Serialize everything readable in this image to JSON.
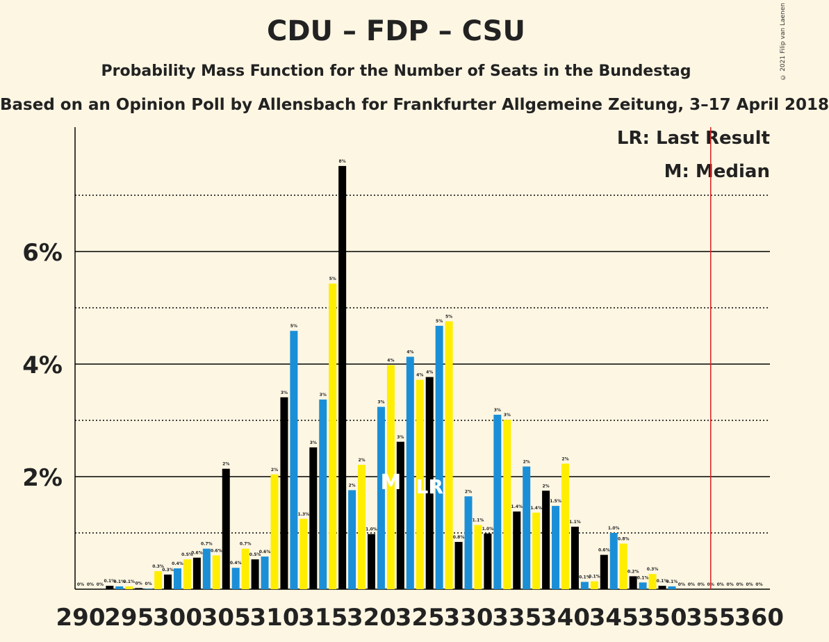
{
  "chart_data": {
    "type": "bar",
    "title": "CDU – FDP – CSU",
    "subtitle": "Probability Mass Function for the Number of Seats in the Bundestag",
    "subtitle2": "Based on an Opinion Poll by Allensbach for Frankfurter Allgemeine Zeitung, 3–17 April 2018",
    "copyright": "© 2021 Filip van Laenen",
    "legend": [
      "LR: Last Result",
      "M: Median"
    ],
    "xlabel": "",
    "ylabel": "",
    "x_tick_labels": [
      "290",
      "295",
      "300",
      "305",
      "310",
      "315",
      "320",
      "325",
      "330",
      "335",
      "340",
      "345",
      "350",
      "355",
      "360"
    ],
    "y_tick_labels": [
      "2%",
      "4%",
      "6%"
    ],
    "ylim": [
      0,
      8
    ],
    "grid": "solid at 2%, 4%, 6%; dotted at 1%, 3%, 5%, 7%",
    "bar_colors": [
      "#000000",
      "#1a8fd8",
      "#ffee00"
    ],
    "majority_line_color": "#e02020",
    "majority_x": 355,
    "median_x": 322,
    "last_result_x": 326,
    "median_mark": "M",
    "last_result_mark": "LR",
    "seats": [
      290,
      291,
      292,
      293,
      294,
      295,
      296,
      297,
      298,
      299,
      300,
      301,
      302,
      303,
      304,
      305,
      306,
      307,
      308,
      309,
      310,
      311,
      312,
      313,
      314,
      315,
      316,
      317,
      318,
      319,
      320,
      321,
      322,
      323,
      324,
      325,
      326,
      327,
      328,
      329,
      330,
      331,
      332,
      333,
      334,
      335,
      336,
      337,
      338,
      339,
      340,
      341,
      342,
      343,
      344,
      345,
      346,
      347,
      348,
      349,
      350,
      351,
      352,
      353,
      354,
      355,
      356,
      357,
      358,
      359,
      360
    ],
    "values": [
      0.0,
      0.0,
      0.0,
      0.06,
      0.05,
      0.05,
      0.02,
      0.01,
      0.32,
      0.26,
      0.37,
      0.53,
      0.56,
      0.72,
      0.6,
      2.14,
      0.38,
      0.72,
      0.53,
      0.58,
      2.04,
      3.41,
      4.59,
      1.25,
      2.52,
      3.37,
      5.43,
      7.52,
      1.76,
      2.21,
      0.98,
      3.24,
      3.98,
      2.62,
      4.13,
      3.72,
      3.77,
      4.68,
      4.76,
      0.84,
      1.65,
      1.14,
      0.99,
      3.1,
      3.01,
      1.38,
      2.18,
      1.36,
      1.75,
      1.48,
      2.23,
      1.11,
      0.13,
      0.14,
      0.61,
      1.0,
      0.81,
      0.23,
      0.12,
      0.27,
      0.06,
      0.05,
      0.0,
      0.0,
      0.0,
      0.0,
      0.0,
      0.0,
      0.0,
      0.0,
      0.0
    ],
    "value_labels": [
      "0%",
      "0%",
      "0%",
      "0.1%",
      "0.1%",
      "0.1%",
      "0%",
      "0%",
      "0.3%",
      "0.3%",
      "0.4%",
      "0.5%",
      "0.6%",
      "0.7%",
      "0.6%",
      "2%",
      "0.4%",
      "0.7%",
      "0.5%",
      "0.6%",
      "2%",
      "3%",
      "5%",
      "1.3%",
      "3%",
      "3%",
      "5%",
      "8%",
      "2%",
      "2%",
      "1.0%",
      "3%",
      "4%",
      "3%",
      "4%",
      "4%",
      "4%",
      "5%",
      "5%",
      "0.8%",
      "2%",
      "1.1%",
      "1.0%",
      "3%",
      "3%",
      "1.4%",
      "2%",
      "1.4%",
      "2%",
      "1.5%",
      "2%",
      "1.1%",
      "0.1%",
      "0.1%",
      "0.6%",
      "1.0%",
      "0.8%",
      "0.2%",
      "0.1%",
      "0.3%",
      "0.1%",
      "0.1%",
      "0%",
      "0%",
      "0%",
      "0%",
      "0%",
      "0%",
      "0%",
      "0%",
      "0%"
    ]
  }
}
